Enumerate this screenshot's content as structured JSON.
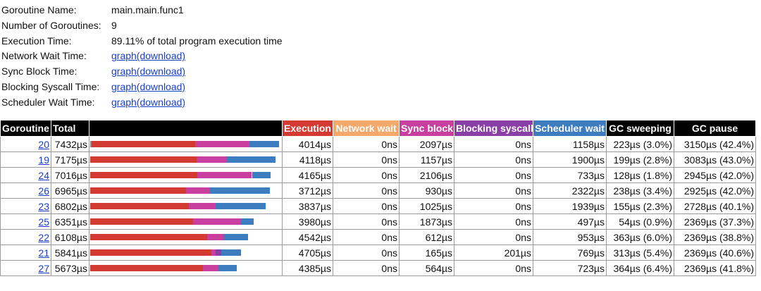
{
  "info": [
    {
      "label": "Goroutine Name:",
      "value": "main.main.func1",
      "is_link": false
    },
    {
      "label": "Number of Goroutines:",
      "value": "9",
      "is_link": false
    },
    {
      "label": "Execution Time:",
      "value": "89.11% of total program execution time",
      "is_link": false
    },
    {
      "label": "Network Wait Time:",
      "value": "graph(download)",
      "is_link": true
    },
    {
      "label": "Sync Block Time:",
      "value": "graph(download)",
      "is_link": true
    },
    {
      "label": "Blocking Syscall Time:",
      "value": "graph(download)",
      "is_link": true
    },
    {
      "label": "Scheduler Wait Time:",
      "value": "graph(download)",
      "is_link": true
    }
  ],
  "colors": {
    "execution": "#d33a32",
    "network": "#f4a86a",
    "sync": "#c93fa0",
    "syscall": "#8a3fa6",
    "sched": "#3d7dbf",
    "gc": "#888888",
    "header": "#000000"
  },
  "headers": {
    "goroutine": "Goroutine",
    "total": "Total",
    "execution": "Execution",
    "network": "Network wait",
    "sync": "Sync block",
    "syscall": "Blocking syscall",
    "sched": "Scheduler wait",
    "gc_sweep": "GC sweeping",
    "gc_pause": "GC pause"
  },
  "bar_max_total": 7432,
  "rows": [
    {
      "id": "20",
      "total": "7432µs",
      "execution": "4014µs",
      "network": "0ns",
      "sync": "2097µs",
      "syscall": "0ns",
      "sched": "1158µs",
      "gc_sweep": "223µs (3.0%)",
      "gc_pause": "3150µs (42.4%)",
      "bar": {
        "gc": 60,
        "execution": 4014,
        "network": 0,
        "sync": 2097,
        "syscall": 0,
        "sched": 1158
      }
    },
    {
      "id": "19",
      "total": "7175µs",
      "execution": "4118µs",
      "network": "0ns",
      "sync": "1157µs",
      "syscall": "0ns",
      "sched": "1900µs",
      "gc_sweep": "199µs (2.8%)",
      "gc_pause": "3083µs (43.0%)",
      "bar": {
        "gc": 0,
        "execution": 4118,
        "network": 0,
        "sync": 1157,
        "syscall": 0,
        "sched": 1900
      }
    },
    {
      "id": "24",
      "total": "7016µs",
      "execution": "4165µs",
      "network": "0ns",
      "sync": "2106µs",
      "syscall": "0ns",
      "sched": "733µs",
      "gc_sweep": "128µs (1.8%)",
      "gc_pause": "2945µs (42.0%)",
      "bar": {
        "gc": 0,
        "execution": 4165,
        "network": 0,
        "sync": 2106,
        "syscall": 0,
        "sched": 733
      }
    },
    {
      "id": "26",
      "total": "6965µs",
      "execution": "3712µs",
      "network": "0ns",
      "sync": "930µs",
      "syscall": "0ns",
      "sched": "2322µs",
      "gc_sweep": "238µs (3.4%)",
      "gc_pause": "2925µs (42.0%)",
      "bar": {
        "gc": 0,
        "execution": 3712,
        "network": 0,
        "sync": 930,
        "syscall": 0,
        "sched": 2322
      }
    },
    {
      "id": "23",
      "total": "6802µs",
      "execution": "3837µs",
      "network": "0ns",
      "sync": "1025µs",
      "syscall": "0ns",
      "sched": "1939µs",
      "gc_sweep": "155µs (2.3%)",
      "gc_pause": "2728µs (40.1%)",
      "bar": {
        "gc": 0,
        "execution": 3837,
        "network": 0,
        "sync": 1025,
        "syscall": 0,
        "sched": 1939
      }
    },
    {
      "id": "25",
      "total": "6351µs",
      "execution": "3980µs",
      "network": "0ns",
      "sync": "1873µs",
      "syscall": "0ns",
      "sched": "497µs",
      "gc_sweep": "54µs (0.9%)",
      "gc_pause": "2369µs (37.3%)",
      "bar": {
        "gc": 0,
        "execution": 3980,
        "network": 0,
        "sync": 1873,
        "syscall": 0,
        "sched": 497
      }
    },
    {
      "id": "22",
      "total": "6108µs",
      "execution": "4542µs",
      "network": "0ns",
      "sync": "612µs",
      "syscall": "0ns",
      "sched": "953µs",
      "gc_sweep": "363µs (6.0%)",
      "gc_pause": "2369µs (38.8%)",
      "bar": {
        "gc": 0,
        "execution": 4542,
        "network": 0,
        "sync": 612,
        "syscall": 0,
        "sched": 953
      }
    },
    {
      "id": "21",
      "total": "5841µs",
      "execution": "4705µs",
      "network": "0ns",
      "sync": "165µs",
      "syscall": "201µs",
      "sched": "769µs",
      "gc_sweep": "313µs (5.4%)",
      "gc_pause": "2369µs (40.6%)",
      "bar": {
        "gc": 0,
        "execution": 4705,
        "network": 0,
        "sync": 165,
        "syscall": 201,
        "sched": 769
      }
    },
    {
      "id": "27",
      "total": "5673µs",
      "execution": "4385µs",
      "network": "0ns",
      "sync": "564µs",
      "syscall": "0ns",
      "sched": "723µs",
      "gc_sweep": "364µs (6.4%)",
      "gc_pause": "2369µs (41.8%)",
      "bar": {
        "gc": 0,
        "execution": 4385,
        "network": 0,
        "sync": 564,
        "syscall": 0,
        "sched": 723
      }
    }
  ]
}
